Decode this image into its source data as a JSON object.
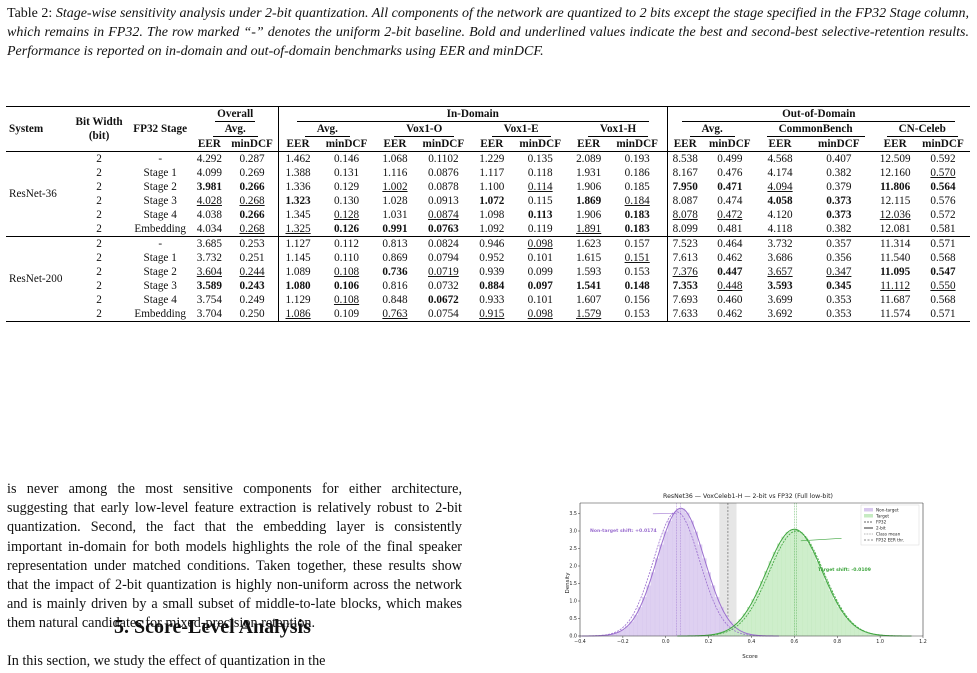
{
  "caption": {
    "label": "Table 2:",
    "text": "Stage-wise sensitivity analysis under 2-bit quantization. All components of the network are quantized to 2 bits except the stage specified in the FP32 Stage column, which remains in FP32. The row marked “-” denotes the uniform 2-bit baseline. Bold and underlined values indicate the best and second-best selective-retention results. Performance is reported on in-domain and out-of-domain benchmarks using EER and minDCF."
  },
  "table": {
    "col_system": "System",
    "col_bitwidth_1": "Bit Width",
    "col_bitwidth_2": "(bit)",
    "col_stage": "FP32 Stage",
    "group_overall": "Overall",
    "group_indomain": "In-Domain",
    "group_outdomain": "Out-of-Domain",
    "sub_avg": "Avg.",
    "sub_vox1o": "Vox1-O",
    "sub_vox1e": "Vox1-E",
    "sub_vox1h": "Vox1-H",
    "sub_common": "CommonBench",
    "sub_cnceleb": "CN-Celeb",
    "metric_eer": "EER",
    "metric_mindcf": "minDCF",
    "systems": [
      {
        "name": "ResNet-36",
        "rows": [
          {
            "bits": "2",
            "stage": "-",
            "v": [
              "4.292",
              "0.287",
              "1.462",
              "0.146",
              "1.068",
              "0.1102",
              "1.229",
              "0.135",
              "2.089",
              "0.193",
              "8.538",
              "0.499",
              "4.568",
              "0.407",
              "12.509",
              "0.592"
            ],
            "f": [
              "",
              "",
              "",
              "",
              "",
              "",
              "",
              "",
              "",
              "",
              "",
              "",
              "",
              "",
              "",
              ""
            ]
          },
          {
            "bits": "2",
            "stage": "Stage 1",
            "v": [
              "4.099",
              "0.269",
              "1.388",
              "0.131",
              "1.116",
              "0.0876",
              "1.117",
              "0.118",
              "1.931",
              "0.186",
              "8.167",
              "0.476",
              "4.174",
              "0.382",
              "12.160",
              "0.570"
            ],
            "f": [
              "",
              "",
              "",
              "",
              "",
              "",
              "",
              "",
              "",
              "",
              "",
              "",
              "",
              "",
              "",
              "u"
            ]
          },
          {
            "bits": "2",
            "stage": "Stage 2",
            "v": [
              "3.981",
              "0.266",
              "1.336",
              "0.129",
              "1.002",
              "0.0878",
              "1.100",
              "0.114",
              "1.906",
              "0.185",
              "7.950",
              "0.471",
              "4.094",
              "0.379",
              "11.806",
              "0.564"
            ],
            "f": [
              "b",
              "b",
              "",
              "",
              "u",
              "",
              "",
              "u",
              "",
              "",
              "b",
              "b",
              "u",
              "",
              "b",
              "b"
            ]
          },
          {
            "bits": "2",
            "stage": "Stage 3",
            "v": [
              "4.028",
              "0.268",
              "1.323",
              "0.130",
              "1.028",
              "0.0913",
              "1.072",
              "0.115",
              "1.869",
              "0.184",
              "8.087",
              "0.474",
              "4.058",
              "0.373",
              "12.115",
              "0.576"
            ],
            "f": [
              "u",
              "u",
              "b",
              "",
              "",
              "",
              "b",
              "",
              "b",
              "u",
              "",
              "",
              "b",
              "b",
              "",
              ""
            ]
          },
          {
            "bits": "2",
            "stage": "Stage 4",
            "v": [
              "4.038",
              "0.266",
              "1.345",
              "0.128",
              "1.031",
              "0.0874",
              "1.098",
              "0.113",
              "1.906",
              "0.183",
              "8.078",
              "0.472",
              "4.120",
              "0.373",
              "12.036",
              "0.572"
            ],
            "f": [
              "",
              "b",
              "",
              "u",
              "",
              "u",
              "",
              "b",
              "",
              "b",
              "u",
              "u",
              "",
              "b",
              "u",
              ""
            ]
          },
          {
            "bits": "2",
            "stage": "Embedding",
            "v": [
              "4.034",
              "0.268",
              "1.325",
              "0.126",
              "0.991",
              "0.0763",
              "1.092",
              "0.119",
              "1.891",
              "0.183",
              "8.099",
              "0.481",
              "4.118",
              "0.382",
              "12.081",
              "0.581"
            ],
            "f": [
              "",
              "u",
              "u",
              "b",
              "b",
              "b",
              "",
              "",
              "u",
              "b",
              "",
              "",
              "",
              "",
              "",
              ""
            ]
          }
        ]
      },
      {
        "name": "ResNet-200",
        "rows": [
          {
            "bits": "2",
            "stage": "-",
            "v": [
              "3.685",
              "0.253",
              "1.127",
              "0.112",
              "0.813",
              "0.0824",
              "0.946",
              "0.098",
              "1.623",
              "0.157",
              "7.523",
              "0.464",
              "3.732",
              "0.357",
              "11.314",
              "0.571"
            ],
            "f": [
              "",
              "",
              "",
              "",
              "",
              "",
              "",
              "u",
              "",
              "",
              "",
              "",
              "",
              "",
              "",
              ""
            ]
          },
          {
            "bits": "2",
            "stage": "Stage 1",
            "v": [
              "3.732",
              "0.251",
              "1.145",
              "0.110",
              "0.869",
              "0.0794",
              "0.952",
              "0.101",
              "1.615",
              "0.151",
              "7.613",
              "0.462",
              "3.686",
              "0.356",
              "11.540",
              "0.568"
            ],
            "f": [
              "",
              "",
              "",
              "",
              "",
              "",
              "",
              "",
              "",
              "u",
              "",
              "",
              "",
              "",
              "",
              ""
            ]
          },
          {
            "bits": "2",
            "stage": "Stage 2",
            "v": [
              "3.604",
              "0.244",
              "1.089",
              "0.108",
              "0.736",
              "0.0719",
              "0.939",
              "0.099",
              "1.593",
              "0.153",
              "7.376",
              "0.447",
              "3.657",
              "0.347",
              "11.095",
              "0.547"
            ],
            "f": [
              "u",
              "u",
              "",
              "u",
              "b",
              "u",
              "",
              "",
              "",
              "",
              "u",
              "b",
              "u",
              "u",
              "b",
              "b"
            ]
          },
          {
            "bits": "2",
            "stage": "Stage 3",
            "v": [
              "3.589",
              "0.243",
              "1.080",
              "0.106",
              "0.816",
              "0.0732",
              "0.884",
              "0.097",
              "1.541",
              "0.148",
              "7.353",
              "0.448",
              "3.593",
              "0.345",
              "11.112",
              "0.550"
            ],
            "f": [
              "b",
              "b",
              "b",
              "b",
              "",
              "",
              "b",
              "b",
              "b",
              "b",
              "b",
              "u",
              "b",
              "b",
              "u",
              "u"
            ]
          },
          {
            "bits": "2",
            "stage": "Stage 4",
            "v": [
              "3.754",
              "0.249",
              "1.129",
              "0.108",
              "0.848",
              "0.0672",
              "0.933",
              "0.101",
              "1.607",
              "0.156",
              "7.693",
              "0.460",
              "3.699",
              "0.353",
              "11.687",
              "0.568"
            ],
            "f": [
              "",
              "",
              "",
              "u",
              "",
              "b",
              "",
              "",
              "",
              "",
              "",
              "",
              "",
              "",
              "",
              ""
            ]
          },
          {
            "bits": "2",
            "stage": "Embedding",
            "v": [
              "3.704",
              "0.250",
              "1.086",
              "0.109",
              "0.763",
              "0.0754",
              "0.915",
              "0.098",
              "1.579",
              "0.153",
              "7.633",
              "0.462",
              "3.692",
              "0.353",
              "11.574",
              "0.571"
            ],
            "f": [
              "",
              "",
              "u",
              "",
              "u",
              "",
              "u",
              "u",
              "u",
              "",
              "",
              "",
              "",
              "",
              "",
              ""
            ]
          }
        ]
      }
    ]
  },
  "body": {
    "paragraph": "is never among the most sensitive components for either architecture, suggesting that early low-level feature extraction is relatively robust to 2-bit quantization. Second, the fact that the embedding layer is consistently important in-domain for both models highlights the role of the final speaker representation under matched conditions. Taken together, these results show that the impact of 2-bit quantization is highly non-uniform across the network and is mainly driven by a small subset of middle-to-late blocks, which makes them natural candidates for mixed-precision retention.",
    "section_heading": "5. Score-Level Analysis",
    "last_line": "In this section, we study the effect of quantization in the"
  },
  "figure": {
    "title": "ResNet36 — VoxCeleb1-H — 2-bit vs FP32 (Full low-bit)",
    "xlabel": "Score",
    "ylabel": "Density",
    "nontarget_annotation": "Non-target shift: +0.0174",
    "target_annotation": "Target shift: -0.0109",
    "legend": [
      "Non-target",
      "Target",
      "FP32",
      "2-bit",
      "Class mean",
      "FP32 EER thr."
    ],
    "colors": {
      "nontarget": "#9b6fcf",
      "target": "#3fa63f",
      "nontarget_fill": "#d8c8ee",
      "target_fill": "#c6ebc2"
    }
  },
  "chart_data": {
    "type": "area",
    "title": "ResNet36 — VoxCeleb1-H — 2-bit vs FP32 (Full low-bit)",
    "xlabel": "Score",
    "ylabel": "Density",
    "xlim": [
      -0.4,
      1.2
    ],
    "ylim": [
      0,
      3.8
    ],
    "xticks": [
      "−0.4",
      "−0.2",
      "0.0",
      "0.2",
      "0.4",
      "0.6",
      "0.8",
      "1.0",
      "1.2"
    ],
    "yticks": [
      "0.0",
      "0.5",
      "1.0",
      "1.5",
      "2.0",
      "2.5",
      "3.0",
      "3.5"
    ],
    "legend_position": "top-right",
    "grid": false,
    "series": [
      {
        "name": "Non-target",
        "kind": "histogram",
        "mean": 0.07,
        "std": 0.11,
        "peak": 3.65
      },
      {
        "name": "Target",
        "kind": "histogram",
        "mean": 0.6,
        "std": 0.13,
        "peak": 3.05
      },
      {
        "name": "FP32",
        "kind": "density",
        "nontarget_mean": 0.05,
        "target_mean": 0.61
      },
      {
        "name": "2-bit",
        "kind": "density",
        "nontarget_mean": 0.07,
        "target_mean": 0.6
      }
    ],
    "thresholds": [
      {
        "name": "FP32 EER thr.",
        "x": 0.29
      }
    ],
    "annotations": [
      {
        "text": "Non-target shift: +0.0174",
        "x": 0.07,
        "y": 3.5
      },
      {
        "text": "Target shift: -0.0109",
        "x": 0.6,
        "y": 2.8
      }
    ]
  }
}
